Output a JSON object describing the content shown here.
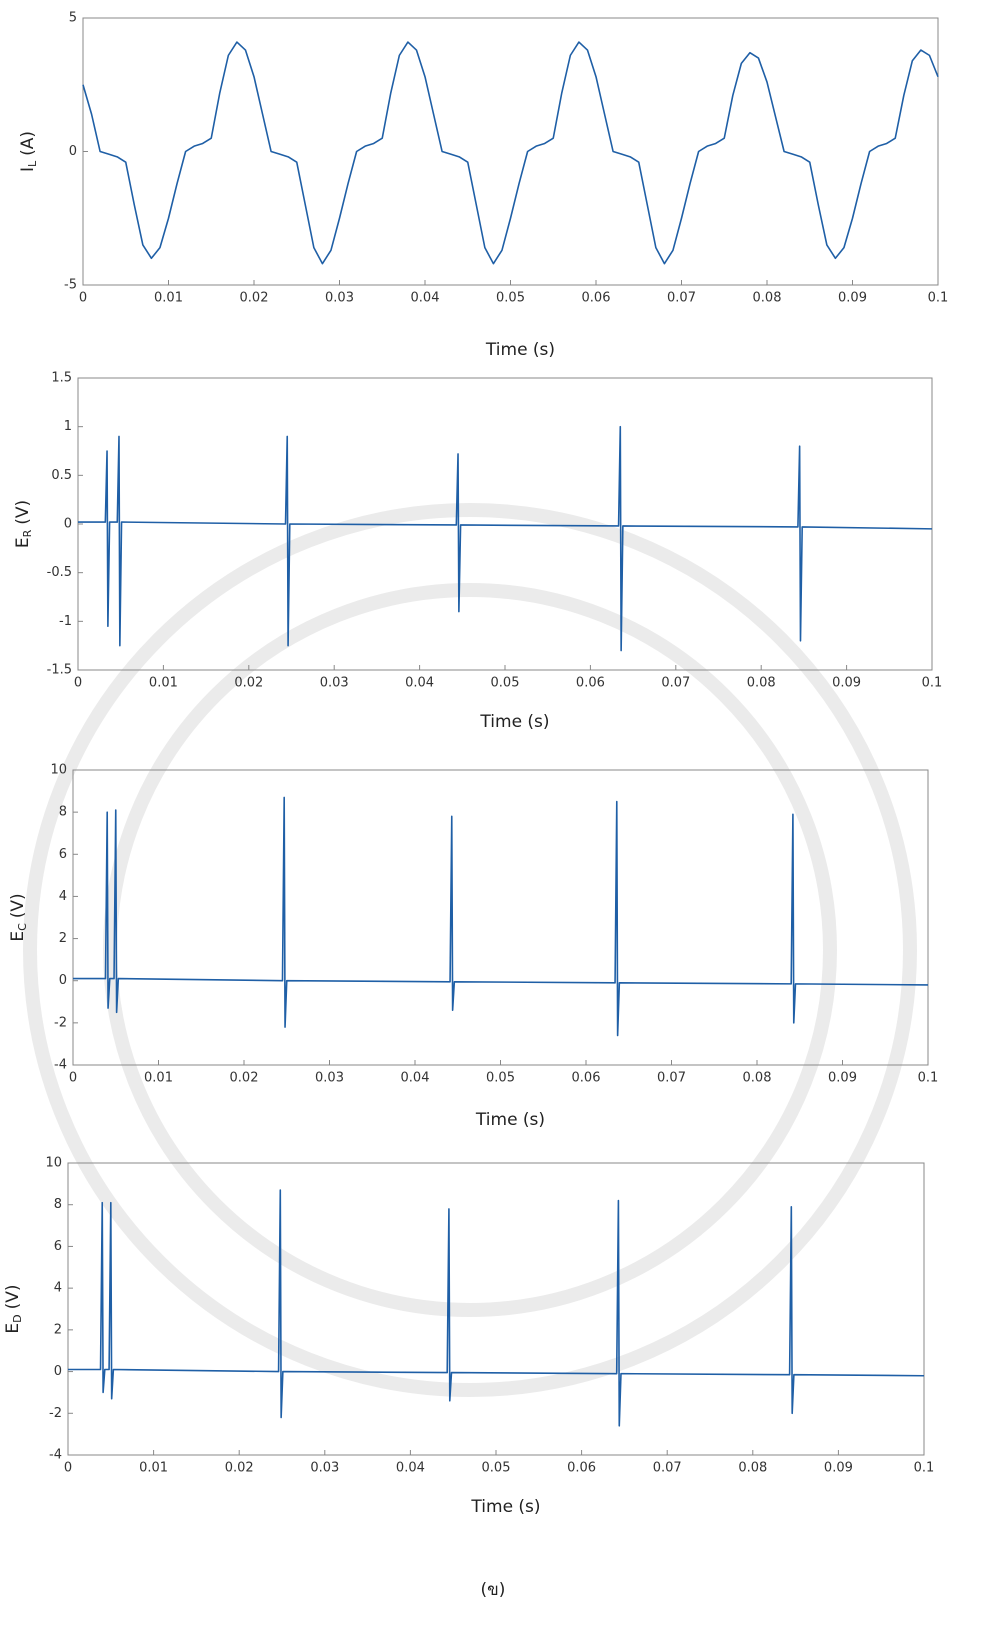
{
  "chart_data": [
    {
      "type": "line",
      "ylabel": {
        "base": "I",
        "subscript": "L",
        "unit": "(A)"
      },
      "xlabel": "Time (s)",
      "xlim": [
        0,
        0.1
      ],
      "xticks": [
        0,
        0.01,
        0.02,
        0.03,
        0.04,
        0.05,
        0.06,
        0.07,
        0.08,
        0.09,
        0.1
      ],
      "ylim": [
        -5,
        5
      ],
      "yticks": [
        -5,
        0,
        5
      ],
      "color": "#1f5fa6",
      "x": [
        0,
        0.001,
        0.002,
        0.003,
        0.004,
        0.005,
        0.006,
        0.007,
        0.008,
        0.009,
        0.01,
        0.011,
        0.012,
        0.013,
        0.014,
        0.015,
        0.016,
        0.017,
        0.018,
        0.019,
        0.02,
        0.021,
        0.022,
        0.023,
        0.024,
        0.025,
        0.026,
        0.027,
        0.028,
        0.029,
        0.03,
        0.031,
        0.032,
        0.033,
        0.034,
        0.035,
        0.036,
        0.037,
        0.038,
        0.039,
        0.04,
        0.041,
        0.042,
        0.043,
        0.044,
        0.045,
        0.046,
        0.047,
        0.048,
        0.049,
        0.05,
        0.051,
        0.052,
        0.053,
        0.054,
        0.055,
        0.056,
        0.057,
        0.058,
        0.059,
        0.06,
        0.061,
        0.062,
        0.063,
        0.064,
        0.065,
        0.066,
        0.067,
        0.068,
        0.069,
        0.07,
        0.071,
        0.072,
        0.073,
        0.074,
        0.075,
        0.076,
        0.077,
        0.078,
        0.079,
        0.08,
        0.081,
        0.082,
        0.083,
        0.084,
        0.085,
        0.086,
        0.087,
        0.088,
        0.089,
        0.09,
        0.091,
        0.092,
        0.093,
        0.094,
        0.095,
        0.096,
        0.097,
        0.098,
        0.099,
        0.1
      ],
      "values": [
        2.5,
        1.4,
        0,
        -0.1,
        -0.2,
        -0.4,
        -2,
        -3.5,
        -4,
        -3.6,
        -2.5,
        -1.2,
        0,
        0.2,
        0.3,
        0.5,
        2.2,
        3.6,
        4.1,
        3.8,
        2.8,
        1.4,
        0,
        -0.1,
        -0.2,
        -0.4,
        -2,
        -3.6,
        -4.2,
        -3.7,
        -2.5,
        -1.2,
        0,
        0.2,
        0.3,
        0.5,
        2.2,
        3.6,
        4.1,
        3.8,
        2.8,
        1.4,
        0,
        -0.1,
        -0.2,
        -0.4,
        -2,
        -3.6,
        -4.2,
        -3.7,
        -2.5,
        -1.2,
        0,
        0.2,
        0.3,
        0.5,
        2.2,
        3.6,
        4.1,
        3.8,
        2.8,
        1.4,
        0,
        -0.1,
        -0.2,
        -0.4,
        -2,
        -3.6,
        -4.2,
        -3.7,
        -2.5,
        -1.2,
        0,
        0.2,
        0.3,
        0.5,
        2.1,
        3.3,
        3.7,
        3.5,
        2.6,
        1.3,
        0,
        -0.1,
        -0.2,
        -0.4,
        -2,
        -3.5,
        -4,
        -3.6,
        -2.5,
        -1.2,
        0,
        0.2,
        0.3,
        0.5,
        2.1,
        3.4,
        3.8,
        3.6,
        2.8
      ]
    },
    {
      "type": "line",
      "ylabel": {
        "base": "E",
        "subscript": "R",
        "unit": "(V)"
      },
      "xlabel": "Time (s)",
      "xlim": [
        0,
        0.1
      ],
      "xticks": [
        0,
        0.01,
        0.02,
        0.03,
        0.04,
        0.05,
        0.06,
        0.07,
        0.08,
        0.09,
        0.1
      ],
      "ylim": [
        -1.5,
        1.5
      ],
      "yticks": [
        -1.5,
        -1,
        -0.5,
        0,
        0.5,
        1,
        1.5
      ],
      "color": "#1f5fa6",
      "x": [
        0,
        0.0032,
        0.0034,
        0.0035,
        0.0037,
        0.0046,
        0.0048,
        0.0049,
        0.0051,
        0.0243,
        0.0245,
        0.0246,
        0.0248,
        0.0443,
        0.0445,
        0.0446,
        0.0448,
        0.0633,
        0.0635,
        0.0636,
        0.0638,
        0.0843,
        0.0845,
        0.0846,
        0.0848,
        0.1
      ],
      "values": [
        0.02,
        0.02,
        0.75,
        -1.05,
        0.02,
        0.02,
        0.9,
        -1.25,
        0.02,
        0,
        0.9,
        -1.25,
        0,
        -0.01,
        0.72,
        -0.9,
        -0.01,
        -0.02,
        1,
        -1.3,
        -0.02,
        -0.03,
        0.8,
        -1.2,
        -0.03,
        -0.05
      ]
    },
    {
      "type": "line",
      "ylabel": {
        "base": "E",
        "subscript": "C",
        "unit": "(V)"
      },
      "xlabel": "Time (s)",
      "xlim": [
        0,
        0.1
      ],
      "xticks": [
        0,
        0.01,
        0.02,
        0.03,
        0.04,
        0.05,
        0.06,
        0.07,
        0.08,
        0.09,
        0.1
      ],
      "ylim": [
        -4,
        10
      ],
      "yticks": [
        -4,
        -2,
        0,
        2,
        4,
        6,
        8,
        10
      ],
      "color": "#1f5fa6",
      "x": [
        0,
        0.0038,
        0.004,
        0.0041,
        0.0043,
        0.0048,
        0.005,
        0.0051,
        0.0053,
        0.0245,
        0.0247,
        0.0248,
        0.025,
        0.0441,
        0.0443,
        0.0444,
        0.0446,
        0.0634,
        0.0636,
        0.0637,
        0.0639,
        0.084,
        0.0842,
        0.0843,
        0.0845,
        0.1
      ],
      "values": [
        0.1,
        0.1,
        8,
        -1.3,
        0.1,
        0.1,
        8.1,
        -1.5,
        0.1,
        0,
        8.7,
        -2.2,
        0,
        -0.05,
        7.8,
        -1.4,
        -0.05,
        -0.1,
        8.5,
        -2.6,
        -0.1,
        -0.15,
        7.9,
        -2,
        -0.15,
        -0.2
      ]
    },
    {
      "type": "line",
      "ylabel": {
        "base": "E",
        "subscript": "D",
        "unit": "(V)"
      },
      "xlabel": "Time (s)",
      "xlim": [
        0,
        0.1
      ],
      "xticks": [
        0,
        0.01,
        0.02,
        0.03,
        0.04,
        0.05,
        0.06,
        0.07,
        0.08,
        0.09,
        0.1
      ],
      "ylim": [
        -4,
        10
      ],
      "yticks": [
        -4,
        -2,
        0,
        2,
        4,
        6,
        8,
        10
      ],
      "color": "#1f5fa6",
      "x": [
        0,
        0.0038,
        0.004,
        0.0041,
        0.0043,
        0.0048,
        0.005,
        0.0051,
        0.0053,
        0.0246,
        0.0248,
        0.0249,
        0.0251,
        0.0443,
        0.0445,
        0.0446,
        0.0448,
        0.0641,
        0.0643,
        0.0644,
        0.0646,
        0.0843,
        0.0845,
        0.0846,
        0.0848,
        0.1
      ],
      "values": [
        0.1,
        0.1,
        8.1,
        -1,
        0.1,
        0.1,
        8.1,
        -1.3,
        0.1,
        0,
        8.7,
        -2.2,
        0,
        -0.05,
        7.8,
        -1.4,
        -0.05,
        -0.1,
        8.2,
        -2.6,
        -0.1,
        -0.15,
        7.9,
        -2,
        -0.15,
        -0.2
      ]
    }
  ],
  "caption": "(ข)"
}
